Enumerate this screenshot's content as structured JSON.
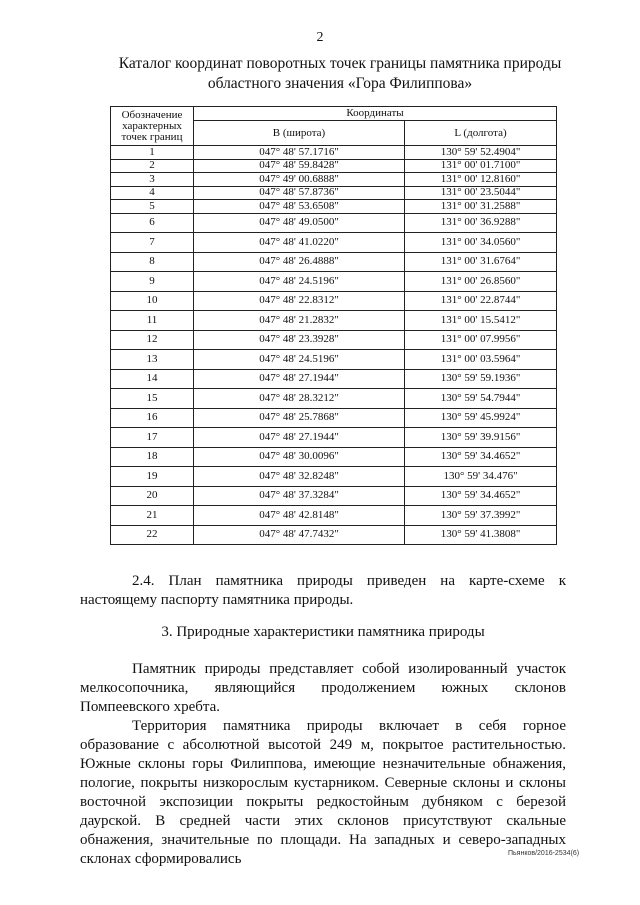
{
  "page_number": "2",
  "title_line1": "Каталог координат поворотных точек границы памятника природы",
  "title_line2": "областного значения «Гора Филиппова»",
  "table": {
    "header_point": "Обозначение характерных точек границ",
    "header_coords": "Координаты",
    "header_b": "B (широта)",
    "header_l": "L (долгота)",
    "rows": [
      [
        "1",
        "047° 48' 57.1716\"",
        "130° 59' 52.4904\""
      ],
      [
        "2",
        "047° 48' 59.8428\"",
        "131° 00' 01.7100\""
      ],
      [
        "3",
        "047° 49' 00.6888\"",
        "131° 00' 12.8160\""
      ],
      [
        "4",
        "047° 48' 57.8736\"",
        "131° 00' 23.5044\""
      ],
      [
        "5",
        "047° 48' 53.6508\"",
        "131° 00' 31.2588\""
      ],
      [
        "6",
        "047° 48' 49.0500\"",
        "131° 00' 36.9288\""
      ],
      [
        "7",
        "047° 48' 41.0220\"",
        "131° 00' 34.0560\""
      ],
      [
        "8",
        "047° 48' 26.4888\"",
        "131° 00' 31.6764\""
      ],
      [
        "9",
        "047° 48' 24.5196\"",
        "131° 00' 26.8560\""
      ],
      [
        "10",
        "047° 48' 22.8312\"",
        "131° 00' 22.8744\""
      ],
      [
        "11",
        "047° 48' 21.2832\"",
        "131° 00' 15.5412\""
      ],
      [
        "12",
        "047° 48' 23.3928\"",
        "131° 00' 07.9956\""
      ],
      [
        "13",
        "047° 48' 24.5196\"",
        "131° 00' 03.5964\""
      ],
      [
        "14",
        "047° 48' 27.1944\"",
        "130° 59' 59.1936\""
      ],
      [
        "15",
        "047° 48' 28.3212\"",
        "130° 59' 54.7944\""
      ],
      [
        "16",
        "047° 48' 25.7868\"",
        "130° 59' 45.9924\""
      ],
      [
        "17",
        "047° 48' 27.1944\"",
        "130° 59' 39.9156\""
      ],
      [
        "18",
        "047° 48' 30.0096\"",
        "130° 59' 34.4652\""
      ],
      [
        "19",
        "047° 48' 32.8248\"",
        "130° 59' 34.476\""
      ],
      [
        "20",
        "047° 48' 37.3284\"",
        "130° 59' 34.4652\""
      ],
      [
        "21",
        "047° 48' 42.8148\"",
        "130° 59' 37.3992\""
      ],
      [
        "22",
        "047° 48' 47.7432\"",
        "130° 59' 41.3808\""
      ]
    ]
  },
  "para_2_4": "2.4. План памятника природы приведен на карте-схеме к настоящему паспорту памятника природы.",
  "section_3_heading": "3. Природные характеристики памятника природы",
  "para_1": "Памятник природы представляет собой изолированный участок мелкосопочника, являющийся продолжением южных склонов Помпеевского хребта.",
  "para_2": "Территория памятника природы включает в себя горное образование с абсолютной высотой 249 м, покрытое растительностью. Южные склоны горы Филиппова, имеющие незначительные обнажения, пологие, покрыты низкорослым кустарником. Северные склоны и склоны восточной экспозиции покрыты редкостойным дубняком с березой даурской. В средней части этих склонов присутствуют скальные обнажения, значительные по площади. На западных и северо-западных склонах сформировались",
  "footer_code": "Пьянков/2016-2534(6)"
}
